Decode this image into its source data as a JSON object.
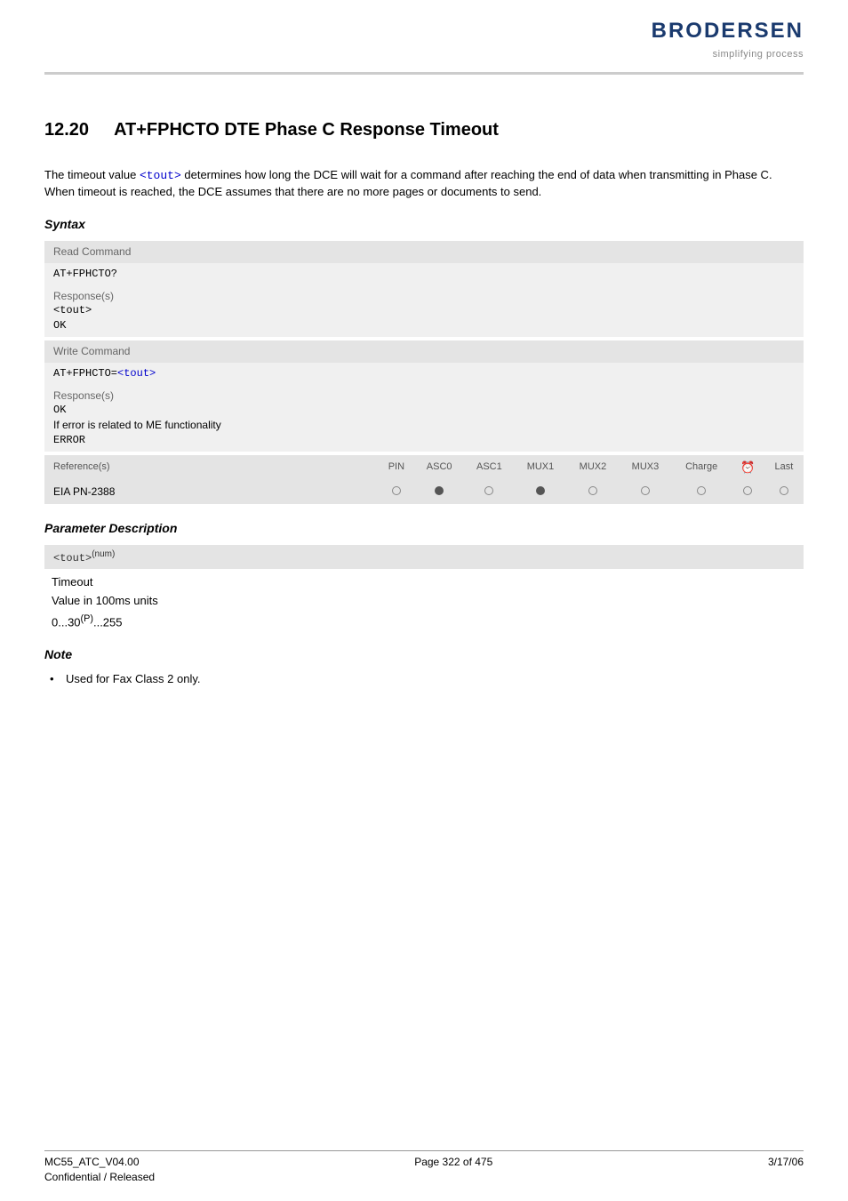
{
  "header": {
    "logo_text": "BRODERSEN",
    "logo_tagline": "simplifying process",
    "logo_color": "#1a3a6e",
    "tagline_color": "#888888"
  },
  "title": {
    "number": "12.20",
    "text": "AT+FPHCTO   DTE Phase C Response Timeout"
  },
  "intro": {
    "pre": "The timeout value ",
    "code": "<tout>",
    "post": " determines how long the DCE will wait for a command after reaching the end of data when transmitting in Phase C. When timeout is reached, the DCE assumes that there are no more pages or documents to send."
  },
  "syntax": {
    "heading": "Syntax",
    "read": {
      "label": "Read Command",
      "command": "AT+FPHCTO?",
      "responses_label": "Response(s)",
      "response_line1_code": "<tout>",
      "response_line2": "OK"
    },
    "write": {
      "label": "Write Command",
      "command_prefix": "AT+FPHCTO=",
      "command_param": "<tout>",
      "responses_label": "Response(s)",
      "response_line1": "OK",
      "response_line2": "If error is related to ME functionality",
      "response_line3": "ERROR"
    }
  },
  "ref_table": {
    "headers": [
      "Reference(s)",
      "PIN",
      "ASC0",
      "ASC1",
      "MUX1",
      "MUX2",
      "MUX3",
      "Charge",
      "⏰",
      "Last"
    ],
    "row": {
      "label": "EIA PN-2388",
      "cells": [
        "empty",
        "filled",
        "empty",
        "filled",
        "empty",
        "empty",
        "empty",
        "empty",
        "empty"
      ]
    }
  },
  "param": {
    "heading": "Parameter Description",
    "code": "<tout>",
    "sup": "(num)",
    "line1": "Timeout",
    "line2": "Value in 100ms units",
    "line3_a": "0...30",
    "line3_sup": "(P)",
    "line3_b": "...255"
  },
  "note": {
    "heading": "Note",
    "item": "Used for Fax Class 2 only."
  },
  "footer": {
    "left1": "MC55_ATC_V04.00",
    "left2": "Confidential / Released",
    "center": "Page 322 of 475",
    "right": "3/17/06"
  }
}
